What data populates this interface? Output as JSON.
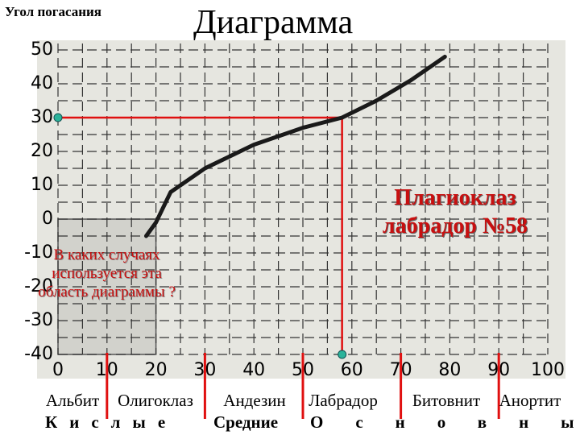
{
  "chart_data": {
    "type": "line",
    "title": "Диаграмма",
    "y_label": "Угол погасания",
    "x": [
      18,
      20,
      23,
      30,
      40,
      50,
      58,
      65,
      72,
      79
    ],
    "values": [
      -5,
      -1,
      8,
      15,
      22,
      27,
      30,
      35,
      41,
      48
    ],
    "color": "#1a1a1a",
    "xlim": [
      0,
      100
    ],
    "ylim": [
      -40,
      50
    ],
    "xticks": [
      0,
      10,
      20,
      30,
      40,
      50,
      60,
      70,
      80,
      90,
      100
    ],
    "yticks": [
      50,
      40,
      30,
      20,
      10,
      0,
      -10,
      -20,
      -30,
      -40
    ],
    "grid": true,
    "marker": {
      "x": 58,
      "y": 30,
      "color": "#e01010",
      "dot_color": "#2bb39a",
      "label": "Плагиоклаз лабрадор №58"
    },
    "region": {
      "x": [
        0,
        20
      ],
      "y": [
        -40,
        0
      ],
      "question": "В каких случаях используется эта область диаграммы ?"
    },
    "boundaries": [
      10,
      30,
      50,
      70,
      90
    ],
    "minerals": [
      "Альбит",
      "Олигоклаз",
      "Андезин",
      "Лабрадор",
      "Битовнит",
      "Анортит"
    ],
    "groups": [
      "Кислые",
      "Средние",
      "Основные"
    ]
  }
}
